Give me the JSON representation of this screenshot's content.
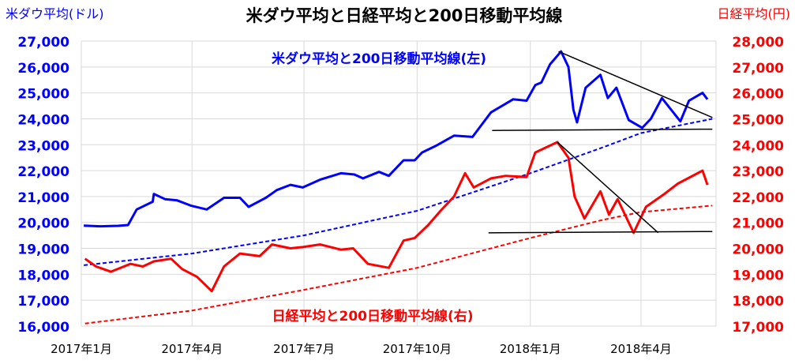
{
  "chart_data": {
    "type": "line",
    "title": "米ダウ平均と日経平均と200日移動平均線",
    "left_axis": {
      "unit_label": "米ダウ平均(ドル)",
      "min": 16000,
      "max": 27000,
      "ticks": [
        "16,000",
        "17,000",
        "18,000",
        "19,000",
        "20,000",
        "21,000",
        "22,000",
        "23,000",
        "24,000",
        "25,000",
        "26,000",
        "27,000"
      ],
      "color": "#0000ff"
    },
    "right_axis": {
      "unit_label": "日経平均(円)",
      "min": 17000,
      "max": 28000,
      "ticks": [
        "17,000",
        "18,000",
        "19,000",
        "20,000",
        "21,000",
        "22,000",
        "23,000",
        "24,000",
        "25,000",
        "26,000",
        "27,000",
        "28,000"
      ],
      "color": "#ff0000"
    },
    "x_axis": {
      "labels": [
        "2017年1月",
        "2017年4月",
        "2017年7月",
        "2017年10月",
        "2018年1月",
        "2018年4月"
      ],
      "label_dates": [
        "2017-01-01",
        "2017-04-01",
        "2017-07-01",
        "2017-10-01",
        "2018-01-01",
        "2018-04-01"
      ],
      "range": [
        "2017-01-01",
        "2018-06-01"
      ]
    },
    "annotations": {
      "dow_label": "米ダウ平均と200日移動平均線(左)",
      "nikkei_label": "日経平均と200日移動平均線(右)"
    },
    "grid": true,
    "series": [
      {
        "axis": "left",
        "color": "#0000ff",
        "style": "solid",
        "points": [
          [
            "2017-01-03",
            19880
          ],
          [
            "2017-01-16",
            19850
          ],
          [
            "2017-01-31",
            19870
          ],
          [
            "2017-02-08",
            19900
          ],
          [
            "2017-02-15",
            20500
          ],
          [
            "2017-02-28",
            20800
          ],
          [
            "2017-03-01",
            21100
          ],
          [
            "2017-03-10",
            20900
          ],
          [
            "2017-03-20",
            20850
          ],
          [
            "2017-03-31",
            20650
          ],
          [
            "2017-04-13",
            20500
          ],
          [
            "2017-04-27",
            20950
          ],
          [
            "2017-05-10",
            20950
          ],
          [
            "2017-05-17",
            20600
          ],
          [
            "2017-05-31",
            20950
          ],
          [
            "2017-06-09",
            21250
          ],
          [
            "2017-06-20",
            21450
          ],
          [
            "2017-06-30",
            21350
          ],
          [
            "2017-07-14",
            21650
          ],
          [
            "2017-07-31",
            21900
          ],
          [
            "2017-08-11",
            21850
          ],
          [
            "2017-08-18",
            21700
          ],
          [
            "2017-08-31",
            21950
          ],
          [
            "2017-09-08",
            21800
          ],
          [
            "2017-09-20",
            22400
          ],
          [
            "2017-09-29",
            22400
          ],
          [
            "2017-10-05",
            22700
          ],
          [
            "2017-10-16",
            22950
          ],
          [
            "2017-10-31",
            23350
          ],
          [
            "2017-11-15",
            23300
          ],
          [
            "2017-11-30",
            24250
          ],
          [
            "2017-12-18",
            24750
          ],
          [
            "2017-12-29",
            24700
          ],
          [
            "2018-01-05",
            25300
          ],
          [
            "2018-01-10",
            25400
          ],
          [
            "2018-01-17",
            26100
          ],
          [
            "2018-01-26",
            26600
          ],
          [
            "2018-02-01",
            26000
          ],
          [
            "2018-02-05",
            24350
          ],
          [
            "2018-02-08",
            23860
          ],
          [
            "2018-02-15",
            25200
          ],
          [
            "2018-02-27",
            25700
          ],
          [
            "2018-03-05",
            24800
          ],
          [
            "2018-03-12",
            25200
          ],
          [
            "2018-03-22",
            23950
          ],
          [
            "2018-04-02",
            23650
          ],
          [
            "2018-04-09",
            24000
          ],
          [
            "2018-04-18",
            24800
          ],
          [
            "2018-05-03",
            23900
          ],
          [
            "2018-05-10",
            24700
          ],
          [
            "2018-05-21",
            25000
          ],
          [
            "2018-05-25",
            24750
          ]
        ]
      },
      {
        "axis": "left",
        "color": "#0000ff",
        "style": "dashed",
        "points": [
          [
            "2017-01-03",
            18350
          ],
          [
            "2017-04-01",
            18800
          ],
          [
            "2017-07-01",
            19500
          ],
          [
            "2017-10-01",
            20450
          ],
          [
            "2018-01-01",
            21900
          ],
          [
            "2018-03-01",
            22900
          ],
          [
            "2018-04-01",
            23450
          ],
          [
            "2018-05-29",
            24000
          ]
        ]
      },
      {
        "axis": "right",
        "color": "#ff0000",
        "style": "solid",
        "points": [
          [
            "2017-01-04",
            19600
          ],
          [
            "2017-01-13",
            19300
          ],
          [
            "2017-01-25",
            19100
          ],
          [
            "2017-02-10",
            19400
          ],
          [
            "2017-02-20",
            19300
          ],
          [
            "2017-03-01",
            19500
          ],
          [
            "2017-03-15",
            19600
          ],
          [
            "2017-03-24",
            19200
          ],
          [
            "2017-04-05",
            18900
          ],
          [
            "2017-04-17",
            18350
          ],
          [
            "2017-04-27",
            19300
          ],
          [
            "2017-05-10",
            19800
          ],
          [
            "2017-05-26",
            19700
          ],
          [
            "2017-06-05",
            20150
          ],
          [
            "2017-06-20",
            20000
          ],
          [
            "2017-06-30",
            20050
          ],
          [
            "2017-07-14",
            20150
          ],
          [
            "2017-07-31",
            19950
          ],
          [
            "2017-08-10",
            20000
          ],
          [
            "2017-08-22",
            19400
          ],
          [
            "2017-09-08",
            19250
          ],
          [
            "2017-09-20",
            20300
          ],
          [
            "2017-09-29",
            20400
          ],
          [
            "2017-10-10",
            20900
          ],
          [
            "2017-10-20",
            21450
          ],
          [
            "2017-10-31",
            22000
          ],
          [
            "2017-11-09",
            22900
          ],
          [
            "2017-11-16",
            22350
          ],
          [
            "2017-11-30",
            22700
          ],
          [
            "2017-12-12",
            22800
          ],
          [
            "2017-12-29",
            22750
          ],
          [
            "2018-01-05",
            23700
          ],
          [
            "2018-01-23",
            24100
          ],
          [
            "2018-02-01",
            23500
          ],
          [
            "2018-02-06",
            22000
          ],
          [
            "2018-02-14",
            21150
          ],
          [
            "2018-02-27",
            22200
          ],
          [
            "2018-03-06",
            21300
          ],
          [
            "2018-03-13",
            21900
          ],
          [
            "2018-03-26",
            20600
          ],
          [
            "2018-04-05",
            21600
          ],
          [
            "2018-04-20",
            22100
          ],
          [
            "2018-05-01",
            22500
          ],
          [
            "2018-05-21",
            23000
          ],
          [
            "2018-05-25",
            22450
          ]
        ]
      },
      {
        "axis": "right",
        "color": "#ff0000",
        "style": "dashed",
        "points": [
          [
            "2017-01-04",
            17100
          ],
          [
            "2017-04-01",
            17600
          ],
          [
            "2017-07-01",
            18400
          ],
          [
            "2017-10-01",
            19250
          ],
          [
            "2018-01-01",
            20400
          ],
          [
            "2018-03-01",
            21100
          ],
          [
            "2018-04-01",
            21400
          ],
          [
            "2018-05-29",
            21650
          ]
        ]
      }
    ],
    "trend_lines": [
      {
        "axis": "left",
        "from": [
          "2017-12-01",
          23550
        ],
        "to": [
          "2018-05-29",
          23600
        ]
      },
      {
        "axis": "left",
        "from": [
          "2018-01-24",
          26600
        ],
        "to": [
          "2018-05-29",
          24050
        ]
      },
      {
        "axis": "right",
        "from": [
          "2017-11-28",
          20600
        ],
        "to": [
          "2018-05-29",
          20650
        ]
      },
      {
        "axis": "right",
        "from": [
          "2018-01-23",
          24100
        ],
        "to": [
          "2018-04-15",
          20600
        ]
      }
    ]
  }
}
